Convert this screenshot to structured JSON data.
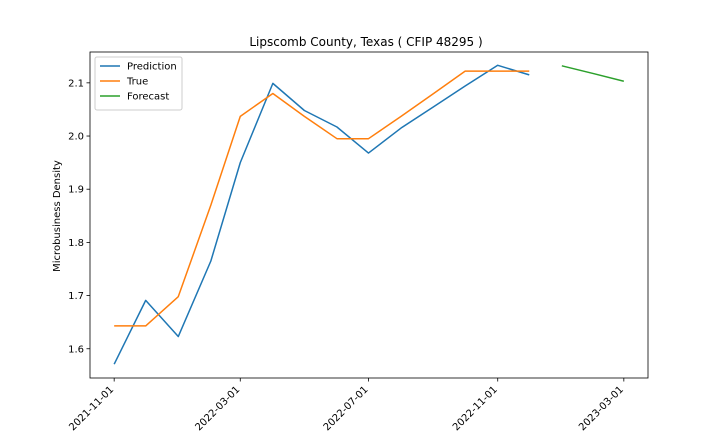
{
  "chart_data": {
    "type": "line",
    "title": "Lipscomb County, Texas ( CFIP 48295 )",
    "xlabel": "",
    "ylabel": "Microbusiness Density",
    "x_ticks": [
      "2021-11-01",
      "2022-03-01",
      "2022-07-01",
      "2022-11-01",
      "2023-03-01"
    ],
    "y_ticks": [
      "1.6",
      "1.7",
      "1.8",
      "1.9",
      "2.0",
      "2.1"
    ],
    "ylim": [
      1.545,
      2.158
    ],
    "xlim": [
      "2021-10-09",
      "2023-03-24"
    ],
    "grid": false,
    "legend_position": "top-left",
    "series": [
      {
        "name": "Prediction",
        "color": "#1f77b4",
        "x": [
          "2021-11-01",
          "2021-12-01",
          "2022-01-01",
          "2022-02-01",
          "2022-03-01",
          "2022-04-01",
          "2022-05-01",
          "2022-06-01",
          "2022-07-01",
          "2022-08-01",
          "2022-09-01",
          "2022-10-01",
          "2022-11-01",
          "2022-12-01"
        ],
        "values": [
          1.571,
          1.691,
          1.623,
          1.765,
          1.95,
          2.099,
          2.048,
          2.017,
          1.968,
          2.015,
          2.055,
          2.094,
          2.133,
          2.115
        ]
      },
      {
        "name": "True",
        "color": "#ff7f0e",
        "x": [
          "2021-11-01",
          "2021-12-01",
          "2022-01-01",
          "2022-02-01",
          "2022-03-01",
          "2022-04-01",
          "2022-05-01",
          "2022-06-01",
          "2022-07-01",
          "2022-08-01",
          "2022-09-01",
          "2022-10-01",
          "2022-11-01",
          "2022-12-01"
        ],
        "values": [
          1.643,
          1.643,
          1.698,
          1.87,
          2.037,
          2.08,
          2.037,
          1.995,
          1.995,
          2.037,
          2.08,
          2.122,
          2.122,
          2.122
        ]
      },
      {
        "name": "Forecast",
        "color": "#2ca02c",
        "x": [
          "2023-01-01",
          "2023-02-01",
          "2023-03-01"
        ],
        "values": [
          2.132,
          2.117,
          2.103
        ]
      }
    ]
  }
}
